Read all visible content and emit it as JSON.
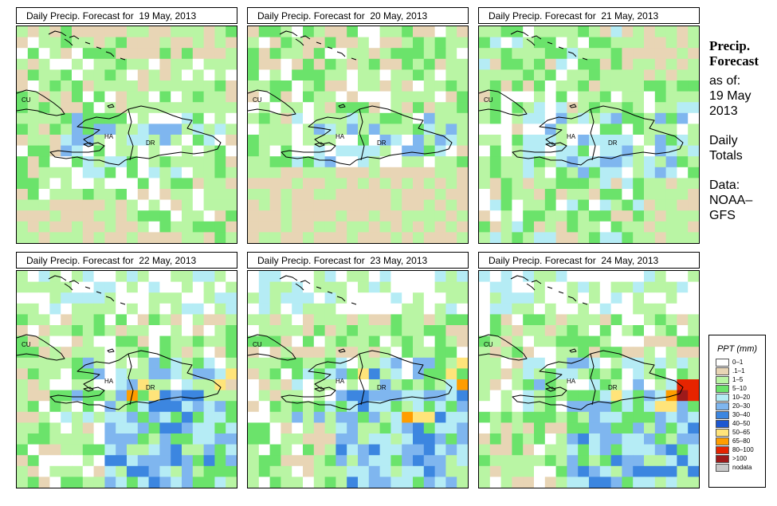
{
  "panels": [
    {
      "title": "Daily Precip. Forecast for  19 May, 2013"
    },
    {
      "title": "Daily Precip. Forecast for  20 May, 2013"
    },
    {
      "title": "Daily Precip. Forecast for  21 May, 2013"
    },
    {
      "title": "Daily Precip. Forecast for  22 May, 2013"
    },
    {
      "title": "Daily Precip. Forecast for  23 May, 2013"
    },
    {
      "title": "Daily Precip. Forecast for  24 May, 2013"
    }
  ],
  "map_labels": {
    "cuba": "CU",
    "haiti": "HA",
    "dominican_republic": "DR"
  },
  "side_info": {
    "heading_line1": "Precip.",
    "heading_line2": "Forecast",
    "as_of": "as of:",
    "date_line1": "19 May",
    "date_line2": "2013",
    "totals_line1": "Daily",
    "totals_line2": "Totals",
    "source_line1": "Data:",
    "source_line2": "NOAA–",
    "source_line3": "GFS"
  },
  "legend": {
    "title": "PPT (mm)",
    "items": [
      {
        "label": "0–1",
        "color": "#ffffff"
      },
      {
        "label": ".1–1",
        "color": "#e8d5b5"
      },
      {
        "label": "1–5",
        "color": "#b9f5a4"
      },
      {
        "label": "5–10",
        "color": "#6be36b"
      },
      {
        "label": "10–20",
        "color": "#b5ecf5"
      },
      {
        "label": "20–30",
        "color": "#7fb6ef"
      },
      {
        "label": "30–40",
        "color": "#3c86e0"
      },
      {
        "label": "40–50",
        "color": "#1d57d0"
      },
      {
        "label": "50–65",
        "color": "#ffe47a"
      },
      {
        "label": "65–80",
        "color": "#ff9d00"
      },
      {
        "label": "80–100",
        "color": "#e62400"
      },
      {
        "label": ">100",
        "color": "#9e1a1a"
      },
      {
        "label": "nodata",
        "color": "#c8c8c8"
      }
    ]
  }
}
